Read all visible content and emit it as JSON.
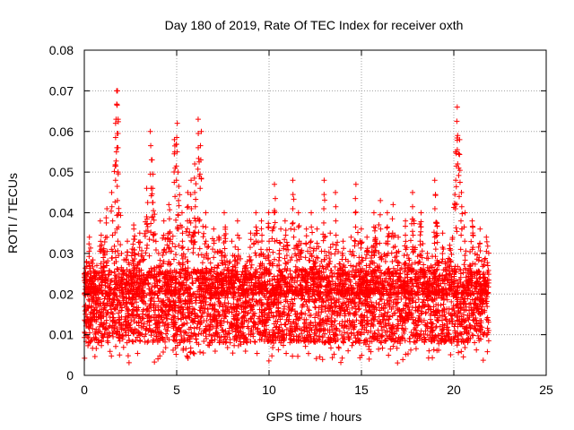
{
  "chart_data": {
    "type": "scatter",
    "title": "Day 180 of 2019, Rate Of TEC Index for receiver oxth",
    "xlabel": "GPS time / hours",
    "ylabel": "ROTI / TECUs",
    "xlim": [
      0,
      25
    ],
    "ylim": [
      0,
      0.08
    ],
    "x_ticks": [
      "0",
      "5",
      "10",
      "15",
      "20",
      "25"
    ],
    "y_ticks": [
      "0",
      "0.01",
      "0.02",
      "0.03",
      "0.04",
      "0.05",
      "0.06",
      "0.07",
      "0.08"
    ],
    "grid": true,
    "legend": "none",
    "marker": "+",
    "color": "#ff0000",
    "series": [
      {
        "x": [
          0.1,
          0.3,
          0.6,
          0.9,
          1.2,
          1.5,
          1.7,
          1.75,
          1.8,
          1.8,
          1.85,
          2.0,
          2.3,
          2.7,
          3.0,
          3.4,
          3.6,
          3.7,
          4.0,
          4.3,
          4.6,
          4.9,
          5.0,
          5.1,
          5.3,
          5.6,
          5.8,
          6.0,
          6.2,
          6.3,
          6.6,
          7.0,
          7.3,
          7.6,
          8.0,
          8.3,
          8.8,
          9.0,
          9.3,
          9.6,
          10.0,
          10.3,
          10.6,
          10.9,
          11.3,
          11.6,
          12.0,
          12.3,
          12.6,
          13.0,
          13.3,
          13.6,
          14.0,
          14.4,
          14.7,
          15.0,
          15.3,
          15.7,
          16.0,
          16.4,
          16.7,
          17.0,
          17.4,
          17.8,
          18.2,
          18.6,
          19.0,
          19.4,
          19.8,
          20.1,
          20.2,
          20.3,
          20.4,
          20.6,
          21.0,
          21.4,
          21.8
        ],
        "y": [
          0.028,
          0.034,
          0.02,
          0.038,
          0.041,
          0.045,
          0.062,
          0.07,
          0.07,
          0.05,
          0.04,
          0.03,
          0.033,
          0.037,
          0.035,
          0.046,
          0.06,
          0.053,
          0.03,
          0.038,
          0.042,
          0.058,
          0.062,
          0.05,
          0.04,
          0.045,
          0.048,
          0.052,
          0.063,
          0.06,
          0.04,
          0.036,
          0.034,
          0.04,
          0.033,
          0.038,
          0.028,
          0.035,
          0.04,
          0.038,
          0.04,
          0.047,
          0.036,
          0.038,
          0.048,
          0.04,
          0.036,
          0.04,
          0.036,
          0.048,
          0.035,
          0.045,
          0.033,
          0.034,
          0.047,
          0.036,
          0.034,
          0.04,
          0.043,
          0.04,
          0.042,
          0.034,
          0.038,
          0.045,
          0.04,
          0.03,
          0.048,
          0.035,
          0.032,
          0.055,
          0.066,
          0.058,
          0.045,
          0.04,
          0.038,
          0.036,
          0.034
        ]
      }
    ]
  }
}
